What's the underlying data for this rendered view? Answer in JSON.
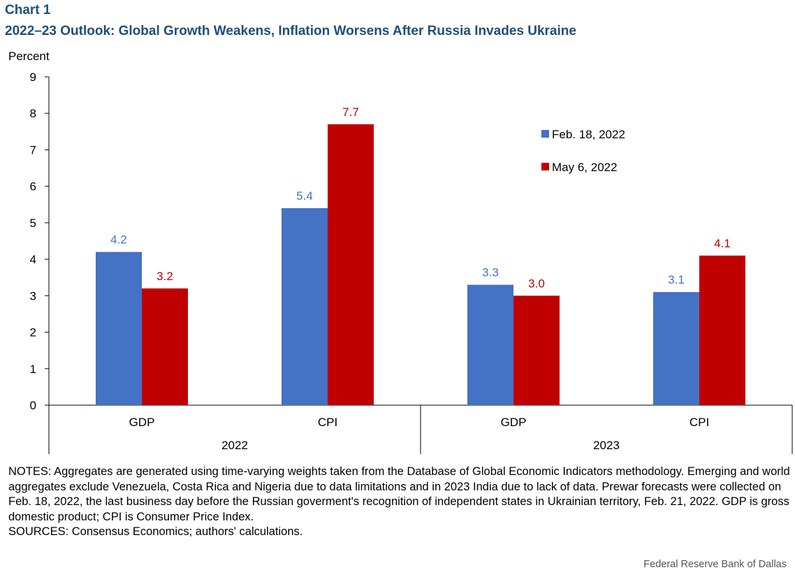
{
  "header": {
    "label": "Chart 1",
    "title": "2022–23 Outlook: Global Growth Weakens, Inflation Worsens After Russia Invades Ukraine"
  },
  "chart_data": {
    "type": "bar",
    "ylabel": "Percent",
    "ylim": [
      0,
      9
    ],
    "yticks": [
      "0",
      "1",
      "2",
      "3",
      "4",
      "5",
      "6",
      "7",
      "8",
      "9"
    ],
    "categories": [
      "GDP",
      "CPI",
      "GDP",
      "CPI"
    ],
    "groups": [
      {
        "label": "2022",
        "categories": [
          "GDP",
          "CPI"
        ]
      },
      {
        "label": "2023",
        "categories": [
          "GDP",
          "CPI"
        ]
      }
    ],
    "series": [
      {
        "name": "Feb. 18, 2022",
        "color": "#4472c4",
        "values": [
          4.2,
          5.4,
          3.3,
          3.1
        ],
        "labels": [
          "4.2",
          "5.4",
          "3.3",
          "3.1"
        ]
      },
      {
        "name": "May 6, 2022",
        "color": "#c00000",
        "values": [
          3.2,
          7.7,
          3.0,
          4.1
        ],
        "labels": [
          "3.2",
          "7.7",
          "3.0",
          "4.1"
        ]
      }
    ],
    "legend_position": "top-right",
    "grid": false
  },
  "notes": {
    "text": "NOTES: Aggregates are generated using time-varying weights taken from the Database of Global Economic Indicators methodology. Emerging and world aggregates exclude Venezuela, Costa Rica and Nigeria due to data limitations and in 2023 India due to lack of data. Prewar forecasts were collected on Feb. 18, 2022, the last business day before the Russian goverment's recognition of independent states in Ukrainian territory, Feb. 21, 2022. GDP is gross domestic product; CPI is Consumer Price Index.",
    "sources": "SOURCES: Consensus Economics; authors' calculations."
  },
  "credit": "Federal Reserve Bank of Dallas"
}
